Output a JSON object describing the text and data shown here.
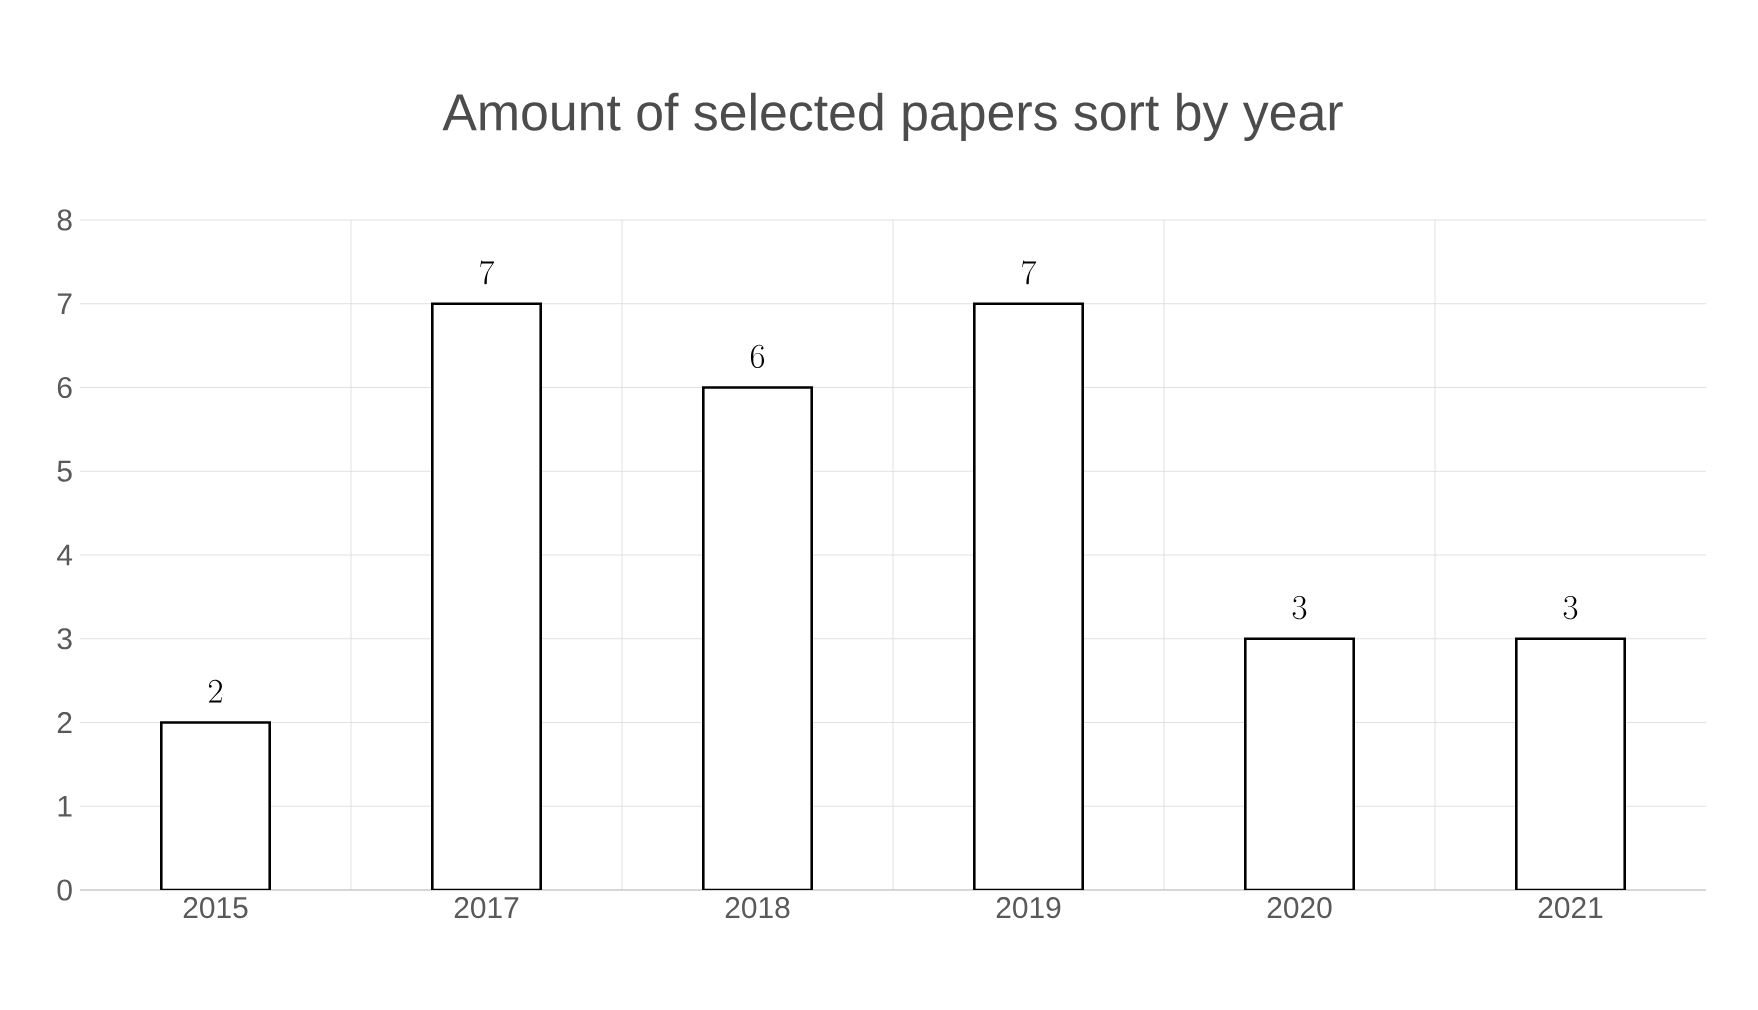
{
  "chart_data": {
    "type": "bar",
    "title": "Amount of selected papers sort by year",
    "categories": [
      "2015",
      "2017",
      "2018",
      "2019",
      "2020",
      "2021"
    ],
    "values": [
      2,
      7,
      6,
      7,
      3,
      3
    ],
    "color": "#ffffff",
    "ylim": [
      0,
      8
    ],
    "yticks": [
      0,
      1,
      2,
      3,
      4,
      5,
      6,
      7,
      8
    ],
    "grid": true,
    "data_labels": true
  }
}
